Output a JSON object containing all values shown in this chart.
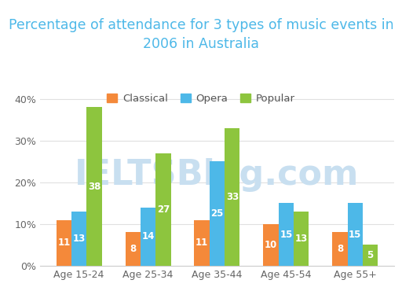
{
  "title": "Percentage of attendance for 3 types of music events in\n2006 in Australia",
  "categories": [
    "Age 15-24",
    "Age 25-34",
    "Age 35-44",
    "Age 45-54",
    "Age 55+"
  ],
  "series": {
    "Classical": [
      11,
      8,
      11,
      10,
      8
    ],
    "Opera": [
      13,
      14,
      25,
      15,
      15
    ],
    "Popular": [
      38,
      27,
      33,
      13,
      5
    ]
  },
  "colors": {
    "Classical": "#F4893A",
    "Opera": "#4DB8E8",
    "Popular": "#8DC53E"
  },
  "ylim": [
    0,
    42
  ],
  "yticks": [
    0,
    10,
    20,
    30,
    40
  ],
  "ytick_labels": [
    "0%",
    "10%",
    "20%",
    "30%",
    "40%"
  ],
  "bar_width": 0.22,
  "title_fontsize": 12.5,
  "title_color": "#4DB8E8",
  "legend_fontsize": 9.5,
  "label_fontsize": 8.5,
  "tick_fontsize": 9,
  "background_color": "#ffffff",
  "grid_color": "#e0e0e0",
  "watermark": "IELTSBlog.com",
  "watermark_color": "#c8dff0",
  "watermark_fontsize": 32
}
